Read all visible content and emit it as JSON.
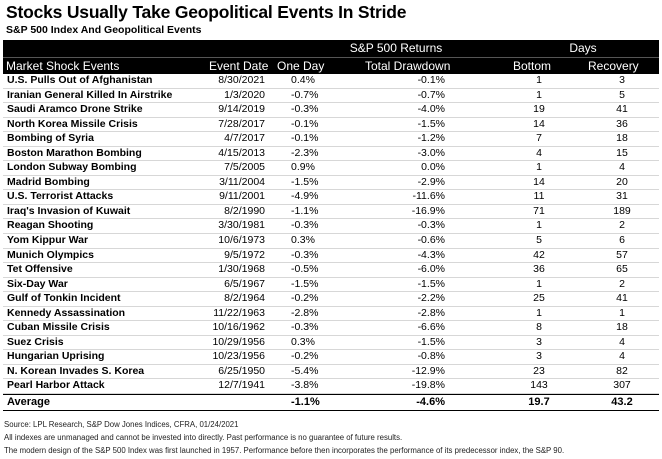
{
  "title": "Stocks Usually Take Geopolitical Events In Stride",
  "subtitle": "S&P 500 Index And Geopolitical Events",
  "header": {
    "group_returns": "S&P 500 Returns",
    "group_days": "Days",
    "col_event": "Market Shock Events",
    "col_date": "Event Date",
    "col_one_day": "One Day",
    "col_drawdown": "Total Drawdown",
    "col_bottom": "Bottom",
    "col_recovery": "Recovery"
  },
  "rows": [
    {
      "event": "U.S. Pulls Out of Afghanistan",
      "date": "8/30/2021",
      "one_day": "0.4%",
      "drawdown": "-0.1%",
      "bottom": "1",
      "recovery": "3"
    },
    {
      "event": "Iranian General Killed In Airstrike",
      "date": "1/3/2020",
      "one_day": "-0.7%",
      "drawdown": "-0.7%",
      "bottom": "1",
      "recovery": "5"
    },
    {
      "event": "Saudi Aramco Drone Strike",
      "date": "9/14/2019",
      "one_day": "-0.3%",
      "drawdown": "-4.0%",
      "bottom": "19",
      "recovery": "41"
    },
    {
      "event": "North Korea Missile Crisis",
      "date": "7/28/2017",
      "one_day": "-0.1%",
      "drawdown": "-1.5%",
      "bottom": "14",
      "recovery": "36"
    },
    {
      "event": "Bombing of Syria",
      "date": "4/7/2017",
      "one_day": "-0.1%",
      "drawdown": "-1.2%",
      "bottom": "7",
      "recovery": "18"
    },
    {
      "event": "Boston Marathon Bombing",
      "date": "4/15/2013",
      "one_day": "-2.3%",
      "drawdown": "-3.0%",
      "bottom": "4",
      "recovery": "15"
    },
    {
      "event": "London Subway Bombing",
      "date": "7/5/2005",
      "one_day": "0.9%",
      "drawdown": "0.0%",
      "bottom": "1",
      "recovery": "4"
    },
    {
      "event": "Madrid Bombing",
      "date": "3/11/2004",
      "one_day": "-1.5%",
      "drawdown": "-2.9%",
      "bottom": "14",
      "recovery": "20"
    },
    {
      "event": "U.S. Terrorist Attacks",
      "date": "9/11/2001",
      "one_day": "-4.9%",
      "drawdown": "-11.6%",
      "bottom": "11",
      "recovery": "31"
    },
    {
      "event": "Iraq's Invasion of Kuwait",
      "date": "8/2/1990",
      "one_day": "-1.1%",
      "drawdown": "-16.9%",
      "bottom": "71",
      "recovery": "189"
    },
    {
      "event": "Reagan Shooting",
      "date": "3/30/1981",
      "one_day": "-0.3%",
      "drawdown": "-0.3%",
      "bottom": "1",
      "recovery": "2"
    },
    {
      "event": "Yom Kippur War",
      "date": "10/6/1973",
      "one_day": "0.3%",
      "drawdown": "-0.6%",
      "bottom": "5",
      "recovery": "6"
    },
    {
      "event": "Munich Olympics",
      "date": "9/5/1972",
      "one_day": "-0.3%",
      "drawdown": "-4.3%",
      "bottom": "42",
      "recovery": "57"
    },
    {
      "event": "Tet Offensive",
      "date": "1/30/1968",
      "one_day": "-0.5%",
      "drawdown": "-6.0%",
      "bottom": "36",
      "recovery": "65"
    },
    {
      "event": "Six-Day War",
      "date": "6/5/1967",
      "one_day": "-1.5%",
      "drawdown": "-1.5%",
      "bottom": "1",
      "recovery": "2"
    },
    {
      "event": "Gulf of Tonkin Incident",
      "date": "8/2/1964",
      "one_day": "-0.2%",
      "drawdown": "-2.2%",
      "bottom": "25",
      "recovery": "41"
    },
    {
      "event": "Kennedy Assassination",
      "date": "11/22/1963",
      "one_day": "-2.8%",
      "drawdown": "-2.8%",
      "bottom": "1",
      "recovery": "1"
    },
    {
      "event": "Cuban Missile Crisis",
      "date": "10/16/1962",
      "one_day": "-0.3%",
      "drawdown": "-6.6%",
      "bottom": "8",
      "recovery": "18"
    },
    {
      "event": "Suez Crisis",
      "date": "10/29/1956",
      "one_day": "0.3%",
      "drawdown": "-1.5%",
      "bottom": "3",
      "recovery": "4"
    },
    {
      "event": "Hungarian Uprising",
      "date": "10/23/1956",
      "one_day": "-0.2%",
      "drawdown": "-0.8%",
      "bottom": "3",
      "recovery": "4"
    },
    {
      "event": "N. Korean Invades S. Korea",
      "date": "6/25/1950",
      "one_day": "-5.4%",
      "drawdown": "-12.9%",
      "bottom": "23",
      "recovery": "82"
    },
    {
      "event": "Pearl Harbor Attack",
      "date": "12/7/1941",
      "one_day": "-3.8%",
      "drawdown": "-19.8%",
      "bottom": "143",
      "recovery": "307"
    }
  ],
  "average": {
    "label": "Average",
    "one_day": "-1.1%",
    "drawdown": "-4.6%",
    "bottom": "19.7",
    "recovery": "43.2"
  },
  "footnotes": [
    "Source: LPL Research, S&P Dow Jones Indices, CFRA, 01/24/2021",
    "All indexes are unmanaged and cannot be invested into directly.  Past performance is no guarantee of future results.",
    "The modern design of the S&P 500 Index was first launched in 1957. Performance before then incorporates the performance of its predecessor index, the S&P 90."
  ]
}
